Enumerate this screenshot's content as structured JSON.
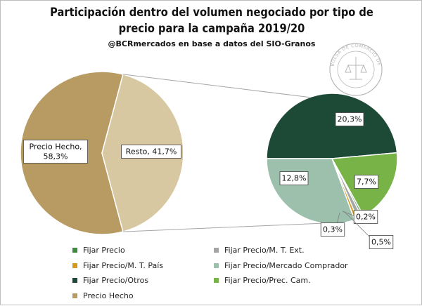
{
  "title_line1": "Participación dentro del volumen negociado por tipo de",
  "title_line2": "precio para la campaña 2019/20",
  "subtitle": "@BCRmercados  en base a datos del SIO-Granos",
  "seal": {
    "text": "BOLSA DE COMERCIO DE ROSARIO",
    "color": "#b8b8b8"
  },
  "chart_data": [
    {
      "type": "pie",
      "slices": [
        {
          "name": "Precio Hecho",
          "value": 58.3,
          "label": "Precio Hecho,\n58,3%",
          "color": "#b89b63"
        },
        {
          "name": "Resto",
          "value": 41.7,
          "label": "Resto, 41,7%",
          "color": "#d7c8a2"
        }
      ]
    },
    {
      "type": "pie",
      "slices": [
        {
          "name": "Fijar Precio/Otros",
          "value": 20.3,
          "label": "20,3%",
          "color": "#1d4a36"
        },
        {
          "name": "Fijar Precio/Prec. Cam.",
          "value": 7.7,
          "label": "7,7%",
          "color": "#77b347"
        },
        {
          "name": "Fijar Precio",
          "value": 0.2,
          "label": "0,2%",
          "color": "#3f8a3f"
        },
        {
          "name": "Fijar Precio/M. T. Ext.",
          "value": 0.5,
          "label": "0,5%",
          "color": "#a5a5a5"
        },
        {
          "name": "Fijar Precio/M. T. País",
          "value": 0.3,
          "label": "0,3%",
          "color": "#d39a1e"
        },
        {
          "name": "Fijar Precio/Mercado Comprador",
          "value": 12.8,
          "label": "12,8%",
          "color": "#9dc0ad"
        }
      ]
    }
  ],
  "legend": [
    {
      "label": "Fijar Precio",
      "color": "#3f8a3f"
    },
    {
      "label": "Fijar Precio/M. T. Ext.",
      "color": "#a5a5a5"
    },
    {
      "label": "Fijar Precio/M. T. País",
      "color": "#d39a1e"
    },
    {
      "label": "Fijar Precio/Mercado Comprador",
      "color": "#9dc0ad"
    },
    {
      "label": "Fijar Precio/Otros",
      "color": "#1d4a36"
    },
    {
      "label": "Fijar Precio/Prec. Cam.",
      "color": "#77b347"
    },
    {
      "label": "Precio Hecho",
      "color": "#b89b63"
    }
  ]
}
